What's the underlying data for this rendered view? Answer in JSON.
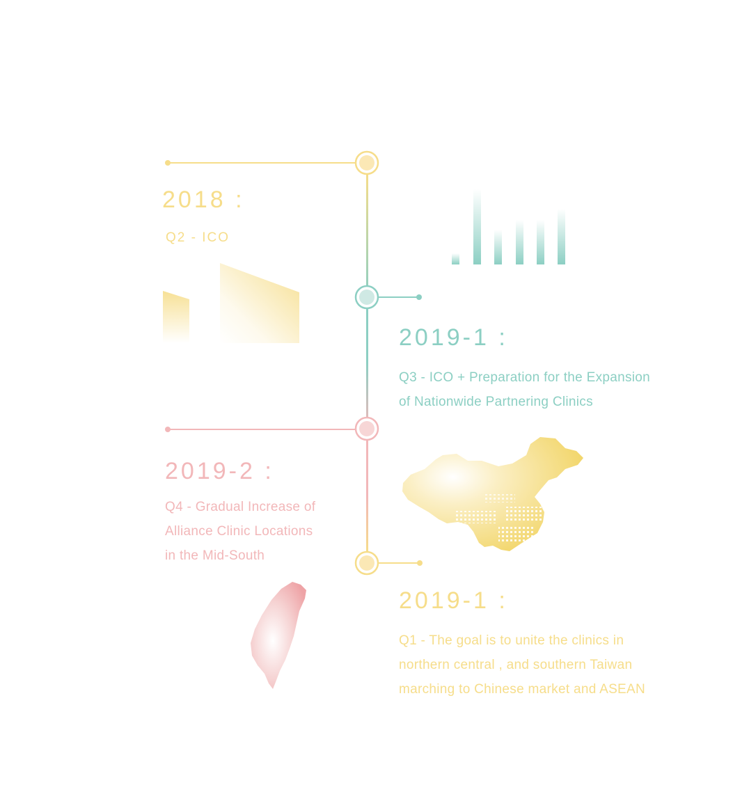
{
  "colors": {
    "yellow": "#f6dd8a",
    "teal": "#8ccfc3",
    "pink": "#f2b7b9"
  },
  "milestones": [
    {
      "date": "2018 :",
      "text": [
        "Q2  -  ICO"
      ]
    },
    {
      "date": "2019-1 :",
      "text": [
        "Q3  -  ICO + Preparation for the Expansion",
        "of Nationwide Partnering Clinics"
      ]
    },
    {
      "date": "2019-2 :",
      "text": [
        "Q4  -  Gradual Increase of",
        "Alliance Clinic Locations",
        "in the Mid-South"
      ]
    },
    {
      "date": "2019-1 :",
      "text": [
        "Q1  -  The goal is to unite the clinics in",
        "northern central , and southern Taiwan",
        "marching to Chinese market and ASEAN"
      ]
    }
  ],
  "icons": [
    "building-icon",
    "bar-graph-icon",
    "china-map-icon",
    "taiwan-map-icon"
  ]
}
